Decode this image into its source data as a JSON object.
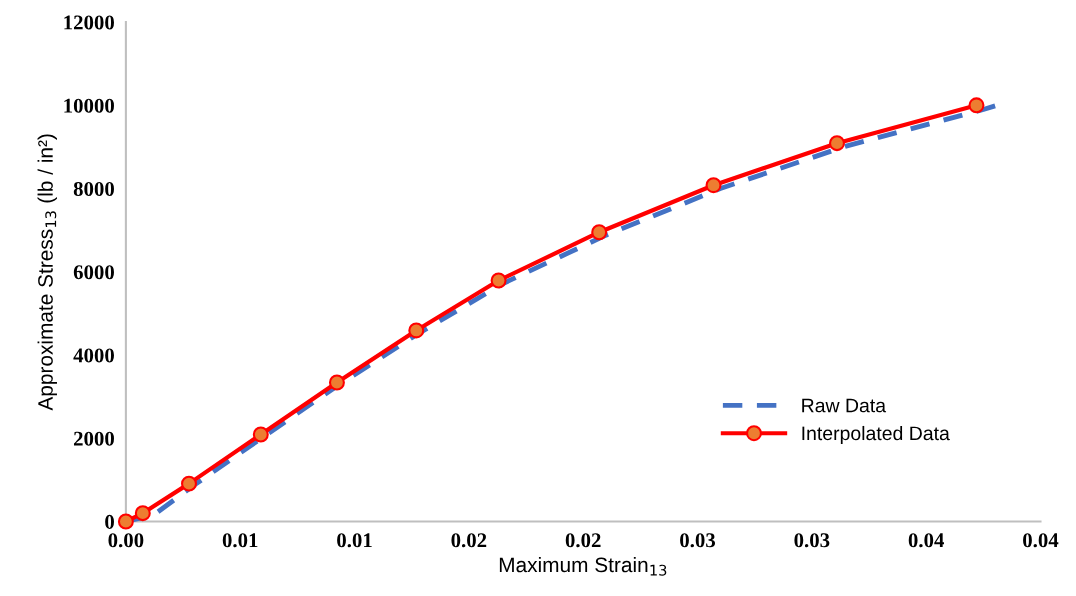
{
  "chart_data": {
    "type": "line",
    "xlabel": "Maximum Strain$_{13}$",
    "ylabel": "Approximate Stress$_{13}$ (lb / in²)",
    "xlim": [
      0,
      0.04
    ],
    "ylim": [
      0,
      12000
    ],
    "xticks": [
      {
        "value": 0,
        "label": "0.00"
      },
      {
        "value": 0.005,
        "label": "0.01"
      },
      {
        "value": 0.01,
        "label": "0.01"
      },
      {
        "value": 0.015,
        "label": "0.02"
      },
      {
        "value": 0.02,
        "label": "0.02"
      },
      {
        "value": 0.025,
        "label": "0.03"
      },
      {
        "value": 0.03,
        "label": "0.03"
      },
      {
        "value": 0.035,
        "label": "0.04"
      },
      {
        "value": 0.04,
        "label": "0.04"
      }
    ],
    "yticks": [
      0,
      2000,
      4000,
      6000,
      8000,
      10000,
      12000
    ],
    "grid": false,
    "legend": "lower right",
    "series": [
      {
        "name": "Raw Data",
        "color": "#4472c4",
        "line_style": "dashed",
        "marker": "none",
        "x": [
          0,
          0.0012,
          0.003,
          0.006,
          0.0093,
          0.0128,
          0.0165,
          0.021,
          0.026,
          0.0315,
          0.0375,
          0.0381
        ],
        "values": [
          0,
          150,
          880,
          2030,
          3280,
          4520,
          5720,
          6880,
          8000,
          9020,
          9900,
          10000
        ]
      },
      {
        "name": "Interpolated Data",
        "color": "#ff0000",
        "line_style": "solid",
        "marker": "circle",
        "x": [
          0,
          0.00074,
          0.00276,
          0.0059,
          0.00923,
          0.0127,
          0.0163,
          0.0207,
          0.0257,
          0.0311,
          0.0372
        ],
        "values": [
          0,
          200,
          910,
          2090,
          3340,
          4590,
          5790,
          6950,
          8080,
          9090,
          10000
        ]
      }
    ]
  }
}
